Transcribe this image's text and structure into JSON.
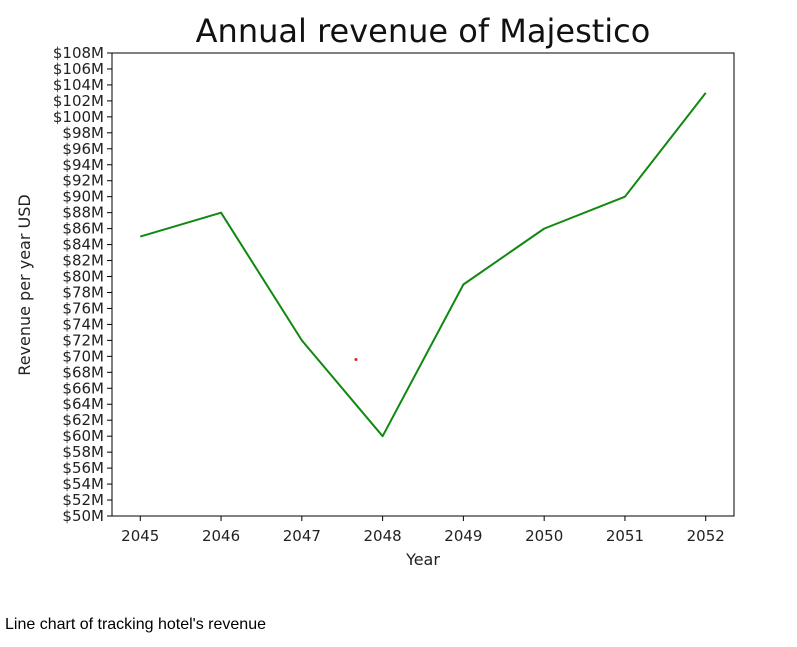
{
  "caption": "Line chart of tracking hotel's revenue",
  "chart_data": {
    "type": "line",
    "title": "Annual revenue of Majestico",
    "xlabel": "Year",
    "ylabel": "Revenue per year USD",
    "x": [
      2045,
      2046,
      2047,
      2048,
      2049,
      2050,
      2051,
      2052
    ],
    "series": [
      {
        "values": [
          85,
          88,
          72,
          60,
          79,
          86,
          90,
          103
        ],
        "color": "#118811"
      }
    ],
    "y_tick_format": "${v}M",
    "ylim": [
      50,
      108
    ],
    "y_tick_step": 2,
    "xlim": [
      2044.65,
      2052.35
    ],
    "grid": false,
    "legend": "none",
    "marker_point": {
      "x": 2047.67,
      "y": 69.6,
      "color": "#dd2222"
    }
  }
}
